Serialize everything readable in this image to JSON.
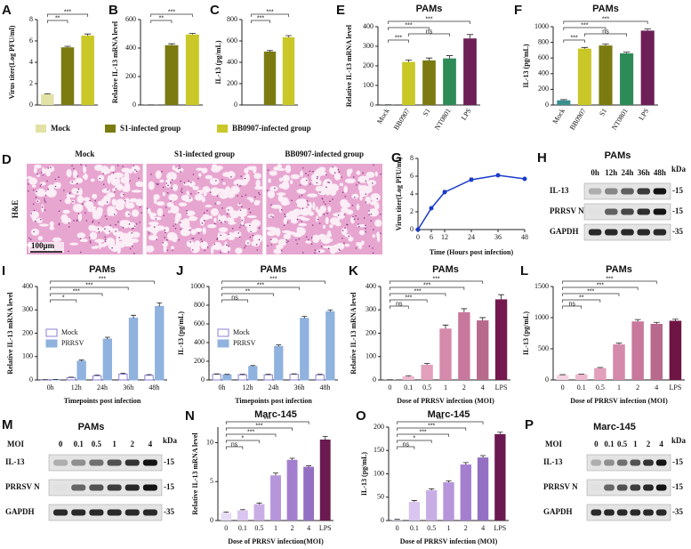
{
  "legend": [
    {
      "name": "Mock",
      "color": "#e3e2a6"
    },
    {
      "name": "S1-infected group",
      "color": "#7b7b12"
    },
    {
      "name": "BB0907-infected group",
      "color": "#c9c828"
    }
  ],
  "chart_data": [
    {
      "type": "bar",
      "panel": "A",
      "ylabel": "Virus titer(Log PFU/ml)",
      "values": [
        1.0,
        5.4,
        6.5
      ],
      "errors": [
        0.05,
        0.1,
        0.15
      ],
      "colors": [
        "#e3e2a6",
        "#7b7b12",
        "#c9c828"
      ],
      "ylim": [
        0,
        8
      ],
      "yticks": [
        0,
        2,
        4,
        6,
        8
      ],
      "annotations": [
        {
          "label": "**",
          "between": [
            "Mock",
            "S1-infected group"
          ]
        },
        {
          "label": "***",
          "between": [
            "Mock",
            "BB0907-infected group"
          ]
        }
      ]
    },
    {
      "type": "bar",
      "panel": "B",
      "ylabel": "Relative IL-13 mRNA level",
      "values": [
        1,
        420,
        495
      ],
      "errors": [
        0,
        10,
        8
      ],
      "colors": [
        "#e3e2a6",
        "#7b7b12",
        "#c9c828"
      ],
      "ylim": [
        0,
        600
      ],
      "yticks": [
        0,
        200,
        400,
        600
      ],
      "annotations": [
        {
          "label": "**",
          "between": [
            "Mock",
            "S1-infected group"
          ]
        },
        {
          "label": "***",
          "between": [
            "Mock",
            "BB0907-infected group"
          ]
        }
      ]
    },
    {
      "type": "bar",
      "panel": "C",
      "ylabel": "IL-13 (pg/mL)",
      "values": [
        0,
        500,
        635
      ],
      "errors": [
        0,
        10,
        15
      ],
      "colors": [
        "#e3e2a6",
        "#7b7b12",
        "#c9c828"
      ],
      "ylim": [
        0,
        800
      ],
      "yticks": [
        0,
        200,
        400,
        600,
        800
      ],
      "annotations": [
        {
          "label": "***",
          "between": [
            "Mock",
            "S1-infected group"
          ]
        },
        {
          "label": "***",
          "between": [
            "Mock",
            "BB0907-infected group"
          ]
        }
      ]
    },
    {
      "type": "bar",
      "panel": "E",
      "title": "PAMs",
      "ylabel": "Relative IL-13 mRNA level",
      "categories": [
        "Mock",
        "BB0907",
        "S1",
        "NT0801",
        "LPS"
      ],
      "values": [
        1,
        220,
        228,
        238,
        340
      ],
      "errors": [
        0,
        10,
        12,
        14,
        20
      ],
      "colors": [
        "#3a8f8f",
        "#c9c828",
        "#7b7b12",
        "#2e8b57",
        "#6e1f56"
      ],
      "ylim": [
        0,
        400
      ],
      "yticks": [
        0,
        100,
        200,
        300,
        400
      ],
      "rotate_x_labels": true,
      "annotations": [
        {
          "label": "***",
          "between": [
            "Mock",
            "BB0907"
          ]
        },
        {
          "label": "ns",
          "between": [
            "BB0907",
            "NT0801"
          ]
        },
        {
          "label": "***",
          "between": [
            "Mock",
            "S1"
          ]
        },
        {
          "label": "***",
          "between": [
            "Mock",
            "LPS"
          ]
        }
      ]
    },
    {
      "type": "bar",
      "panel": "F",
      "title": "PAMs",
      "ylabel": "IL-13 (pg/mL)",
      "categories": [
        "Mock",
        "BB0907",
        "S1",
        "NT0801",
        "LPS"
      ],
      "values": [
        60,
        720,
        760,
        660,
        950
      ],
      "errors": [
        10,
        15,
        18,
        15,
        20
      ],
      "colors": [
        "#3a8f8f",
        "#c9c828",
        "#7b7b12",
        "#2e8b57",
        "#6e1f56"
      ],
      "ylim": [
        0,
        1000
      ],
      "yticks": [
        0,
        200,
        400,
        600,
        800,
        1000
      ],
      "rotate_x_labels": true,
      "annotations": [
        {
          "label": "***",
          "between": [
            "Mock",
            "BB0907"
          ]
        },
        {
          "label": "ns",
          "between": [
            "BB0907",
            "NT0801"
          ]
        },
        {
          "label": "***",
          "between": [
            "Mock",
            "S1"
          ]
        },
        {
          "label": "***",
          "between": [
            "Mock",
            "LPS"
          ]
        }
      ]
    },
    {
      "type": "histology",
      "panel": "D",
      "columns": [
        "Mock",
        "S1-infected group",
        "BB0907-infected group"
      ],
      "row_label": "H&E",
      "scale_bar": "100μm"
    },
    {
      "type": "line",
      "panel": "G",
      "ylabel": "Virus titer(Log PFU/ml)",
      "xlabel": "Time (Hours post infection)",
      "x": [
        0,
        6,
        12,
        24,
        36,
        48
      ],
      "values": [
        0,
        2.4,
        4.2,
        5.6,
        6.1,
        5.7
      ],
      "errors": [
        0,
        0.1,
        0.2,
        0.2,
        0.1,
        0.1
      ],
      "color": "#1a3cc8",
      "xlim": [
        0,
        48
      ],
      "xticks": [
        0,
        6,
        12,
        24,
        36,
        48
      ],
      "ylim": [
        0,
        8
      ],
      "yticks": [
        0,
        2,
        4,
        6,
        8
      ]
    },
    {
      "type": "blot",
      "panel": "H",
      "title": "PAMs",
      "columns": [
        "0h",
        "12h",
        "24h",
        "36h",
        "48h"
      ],
      "rows": [
        "IL-13",
        "PRRSV N",
        "GAPDH"
      ],
      "unit": "kDa",
      "sizes": [
        "-15",
        "-15",
        "-35"
      ]
    },
    {
      "type": "grouped_bar",
      "panel": "I",
      "title": "PAMs",
      "ylabel": "Relative IL-13 mRNA level",
      "xlabel": "Timepoints post infection",
      "categories": [
        "0h",
        "12h",
        "24h",
        "36h",
        "48h"
      ],
      "series": [
        {
          "name": "Mock",
          "color": "#8b7fd4",
          "hollow": true,
          "values": [
            1,
            10,
            18,
            25,
            20
          ],
          "errors": [
            0,
            2,
            3,
            4,
            3
          ]
        },
        {
          "name": "PRRSV",
          "color": "#8fb2de",
          "values": [
            2,
            80,
            175,
            265,
            315
          ],
          "errors": [
            0,
            5,
            8,
            12,
            15
          ]
        }
      ],
      "ylim": [
        0,
        400
      ],
      "yticks": [
        0,
        100,
        200,
        300,
        400
      ],
      "annotations": [
        {
          "label": "*",
          "between": [
            "0h",
            "12h"
          ]
        },
        {
          "label": "***",
          "between": [
            "0h",
            "24h"
          ]
        },
        {
          "label": "***",
          "between": [
            "0h",
            "36h"
          ]
        },
        {
          "label": "***",
          "between": [
            "0h",
            "48h"
          ]
        }
      ]
    },
    {
      "type": "grouped_bar",
      "panel": "J",
      "title": "PAMs",
      "ylabel": "IL-13 (pg/mL)",
      "xlabel": "Timepoints post infection",
      "categories": [
        "0h",
        "12h",
        "24h",
        "36h",
        "48h"
      ],
      "series": [
        {
          "name": "Mock",
          "color": "#8b7fd4",
          "hollow": true,
          "values": [
            60,
            55,
            55,
            60,
            55
          ],
          "errors": [
            5,
            5,
            5,
            5,
            5
          ]
        },
        {
          "name": "PRRSV",
          "color": "#8fb2de",
          "values": [
            55,
            145,
            360,
            660,
            730
          ],
          "errors": [
            5,
            10,
            15,
            20,
            20
          ]
        }
      ],
      "ylim": [
        0,
        1000
      ],
      "yticks": [
        0,
        200,
        400,
        600,
        800,
        1000
      ],
      "annotations": [
        {
          "label": "ns",
          "between": [
            "0h",
            "12h"
          ]
        },
        {
          "label": "**",
          "between": [
            "0h",
            "24h"
          ]
        },
        {
          "label": "***",
          "between": [
            "0h",
            "36h"
          ]
        },
        {
          "label": "***",
          "between": [
            "0h",
            "48h"
          ]
        }
      ]
    },
    {
      "type": "bar",
      "panel": "K",
      "title": "PAMs",
      "ylabel": "Relative IL-13 mRNA level",
      "xlabel": "Dose of PRRSV infection (MOI)",
      "categories": [
        "0",
        "0.1",
        "0.5",
        "1",
        "2",
        "4",
        "LPS"
      ],
      "values": [
        1,
        15,
        65,
        220,
        290,
        255,
        345
      ],
      "errors": [
        0,
        3,
        6,
        15,
        15,
        12,
        20
      ],
      "colors": [
        "#f5d3e2",
        "#eeb8cf",
        "#e3a0bd",
        "#d58aab",
        "#c8789c",
        "#b86a8c",
        "#74184f"
      ],
      "ylim": [
        0,
        400
      ],
      "yticks": [
        0,
        100,
        200,
        300,
        400
      ],
      "annotations": [
        {
          "label": "ns",
          "between": [
            "0",
            "0.1"
          ]
        },
        {
          "label": "***",
          "between": [
            "0",
            "0.5"
          ]
        },
        {
          "label": "***",
          "between": [
            "0",
            "1"
          ]
        },
        {
          "label": "***",
          "between": [
            "0",
            "2"
          ]
        },
        {
          "label": "***",
          "between": [
            "0",
            "4"
          ]
        }
      ]
    },
    {
      "type": "bar",
      "panel": "L",
      "title": "PAMs",
      "ylabel": "IL-13 (pg/mL)",
      "xlabel": "Dose of PRRSV infection (MOI)",
      "categories": [
        "0",
        "0.1",
        "0.5",
        "1",
        "2",
        "4",
        "LPS"
      ],
      "values": [
        80,
        90,
        190,
        570,
        940,
        900,
        950
      ],
      "errors": [
        5,
        5,
        10,
        20,
        30,
        25,
        25
      ],
      "colors": [
        "#f5d3e2",
        "#eeb8cf",
        "#e3a0bd",
        "#d58aab",
        "#c8789c",
        "#b86a8c",
        "#6e1545"
      ],
      "ylim": [
        0,
        1500
      ],
      "yticks": [
        0,
        500,
        1000,
        1500
      ],
      "annotations": [
        {
          "label": "ns",
          "between": [
            "0",
            "0.1"
          ]
        },
        {
          "label": "**",
          "between": [
            "0",
            "0.5"
          ]
        },
        {
          "label": "***",
          "between": [
            "0",
            "1"
          ]
        },
        {
          "label": "***",
          "between": [
            "0",
            "2"
          ]
        },
        {
          "label": "***",
          "between": [
            "0",
            "4"
          ]
        }
      ]
    },
    {
      "type": "blot",
      "panel": "M",
      "title": "PAMs",
      "column_header": "MOI",
      "columns": [
        "0",
        "0.1",
        "0.5",
        "1",
        "2",
        "4"
      ],
      "rows": [
        "IL-13",
        "PRRSV N",
        "GAPDH"
      ],
      "unit": "kDa",
      "sizes": [
        "-15",
        "-15",
        "-35"
      ]
    },
    {
      "type": "bar",
      "panel": "N",
      "title": "Marc-145",
      "ylabel": "Relative IL-13 mRNA level",
      "xlabel": "Dose of PRRSV infection(MOI)",
      "categories": [
        "0",
        "0.1",
        "0.5",
        "1",
        "2",
        "4",
        "LPS"
      ],
      "values": [
        1,
        1.3,
        2.1,
        5.8,
        7.8,
        6.9,
        10.4
      ],
      "errors": [
        0.1,
        0.1,
        0.15,
        0.3,
        0.2,
        0.15,
        0.4
      ],
      "colors": [
        "#e7dcf5",
        "#d9c5ef",
        "#c9aee6",
        "#b795db",
        "#a57fcf",
        "#9470c2",
        "#6a1a50"
      ],
      "ylim": [
        0,
        12
      ],
      "yticks": [
        0,
        5,
        10
      ],
      "annotations": [
        {
          "label": "ns",
          "between": [
            "0",
            "0.1"
          ]
        },
        {
          "label": "*",
          "between": [
            "0",
            "0.5"
          ]
        },
        {
          "label": "***",
          "between": [
            "0",
            "1"
          ]
        },
        {
          "label": "***",
          "between": [
            "0",
            "2"
          ]
        },
        {
          "label": "***",
          "between": [
            "0",
            "4"
          ]
        }
      ]
    },
    {
      "type": "bar",
      "panel": "O",
      "title": "Marc-145",
      "ylabel": "IL-13 (pg/mL)",
      "xlabel": "Dose of PRRSV infection (MOI)",
      "categories": [
        "0",
        "0.1",
        "0.5",
        "1",
        "2",
        "4",
        "LPS"
      ],
      "values": [
        2,
        40,
        65,
        82,
        120,
        135,
        185
      ],
      "errors": [
        0.5,
        3,
        3,
        3,
        4,
        4,
        4
      ],
      "colors": [
        "#e7dcf5",
        "#d9c5ef",
        "#c9aee6",
        "#b795db",
        "#a57fcf",
        "#9470c2",
        "#6a1a50"
      ],
      "ylim": [
        0,
        200
      ],
      "yticks": [
        0,
        50,
        100,
        150,
        200
      ],
      "annotations": [
        {
          "label": "ns",
          "between": [
            "0",
            "0.1"
          ]
        },
        {
          "label": "*",
          "between": [
            "0",
            "0.5"
          ]
        },
        {
          "label": "***",
          "between": [
            "0",
            "1"
          ]
        },
        {
          "label": "***",
          "between": [
            "0",
            "2"
          ]
        },
        {
          "label": "***",
          "between": [
            "0",
            "4"
          ]
        }
      ]
    },
    {
      "type": "blot",
      "panel": "P",
      "title": "Marc-145",
      "column_header": "MOI",
      "columns": [
        "0",
        "0.1",
        "0.5",
        "1",
        "2",
        "4"
      ],
      "rows": [
        "IL-13",
        "PRRSV N",
        "GAPDH"
      ],
      "unit": "kDa",
      "sizes": [
        "-15",
        "-15",
        "-35"
      ]
    }
  ]
}
